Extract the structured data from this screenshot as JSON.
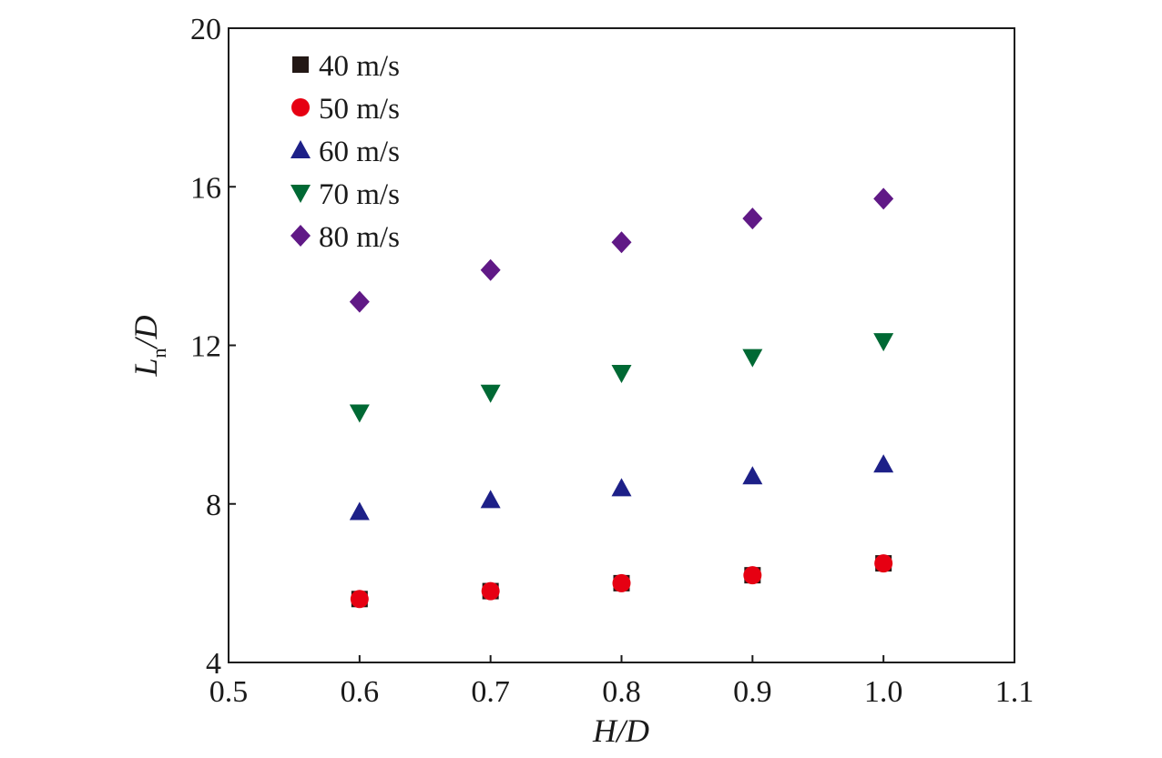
{
  "chart_data": {
    "type": "scatter",
    "title": "",
    "xlabel": "H/D",
    "ylabel_main": "L",
    "ylabel_sub": "n",
    "ylabel_tail": "/D",
    "xlim": [
      0.5,
      1.1
    ],
    "ylim": [
      4,
      20
    ],
    "x_ticks": [
      "0.5",
      "0.6",
      "0.7",
      "0.8",
      "0.9",
      "1.0",
      "1.1"
    ],
    "y_ticks": [
      "4",
      "8",
      "12",
      "16",
      "20"
    ],
    "grid": false,
    "legend_placement": "top-left",
    "x": [
      0.6,
      0.7,
      0.8,
      0.9,
      1.0
    ],
    "series": [
      {
        "name": "40 m/s",
        "marker": "square",
        "color": "#231815",
        "values": [
          5.6,
          5.8,
          6.0,
          6.2,
          6.5
        ]
      },
      {
        "name": "50 m/s",
        "marker": "circle",
        "color": "#e60012",
        "values": [
          5.6,
          5.8,
          6.0,
          6.2,
          6.5
        ]
      },
      {
        "name": "60 m/s",
        "marker": "triangle-up",
        "color": "#1d2088",
        "values": [
          7.8,
          8.1,
          8.4,
          8.7,
          9.0
        ]
      },
      {
        "name": "70 m/s",
        "marker": "triangle-down",
        "color": "#006934",
        "values": [
          10.3,
          10.8,
          11.3,
          11.7,
          12.1
        ]
      },
      {
        "name": "80 m/s",
        "marker": "diamond",
        "color": "#601986",
        "values": [
          13.1,
          13.9,
          14.6,
          15.2,
          15.7
        ]
      }
    ]
  }
}
